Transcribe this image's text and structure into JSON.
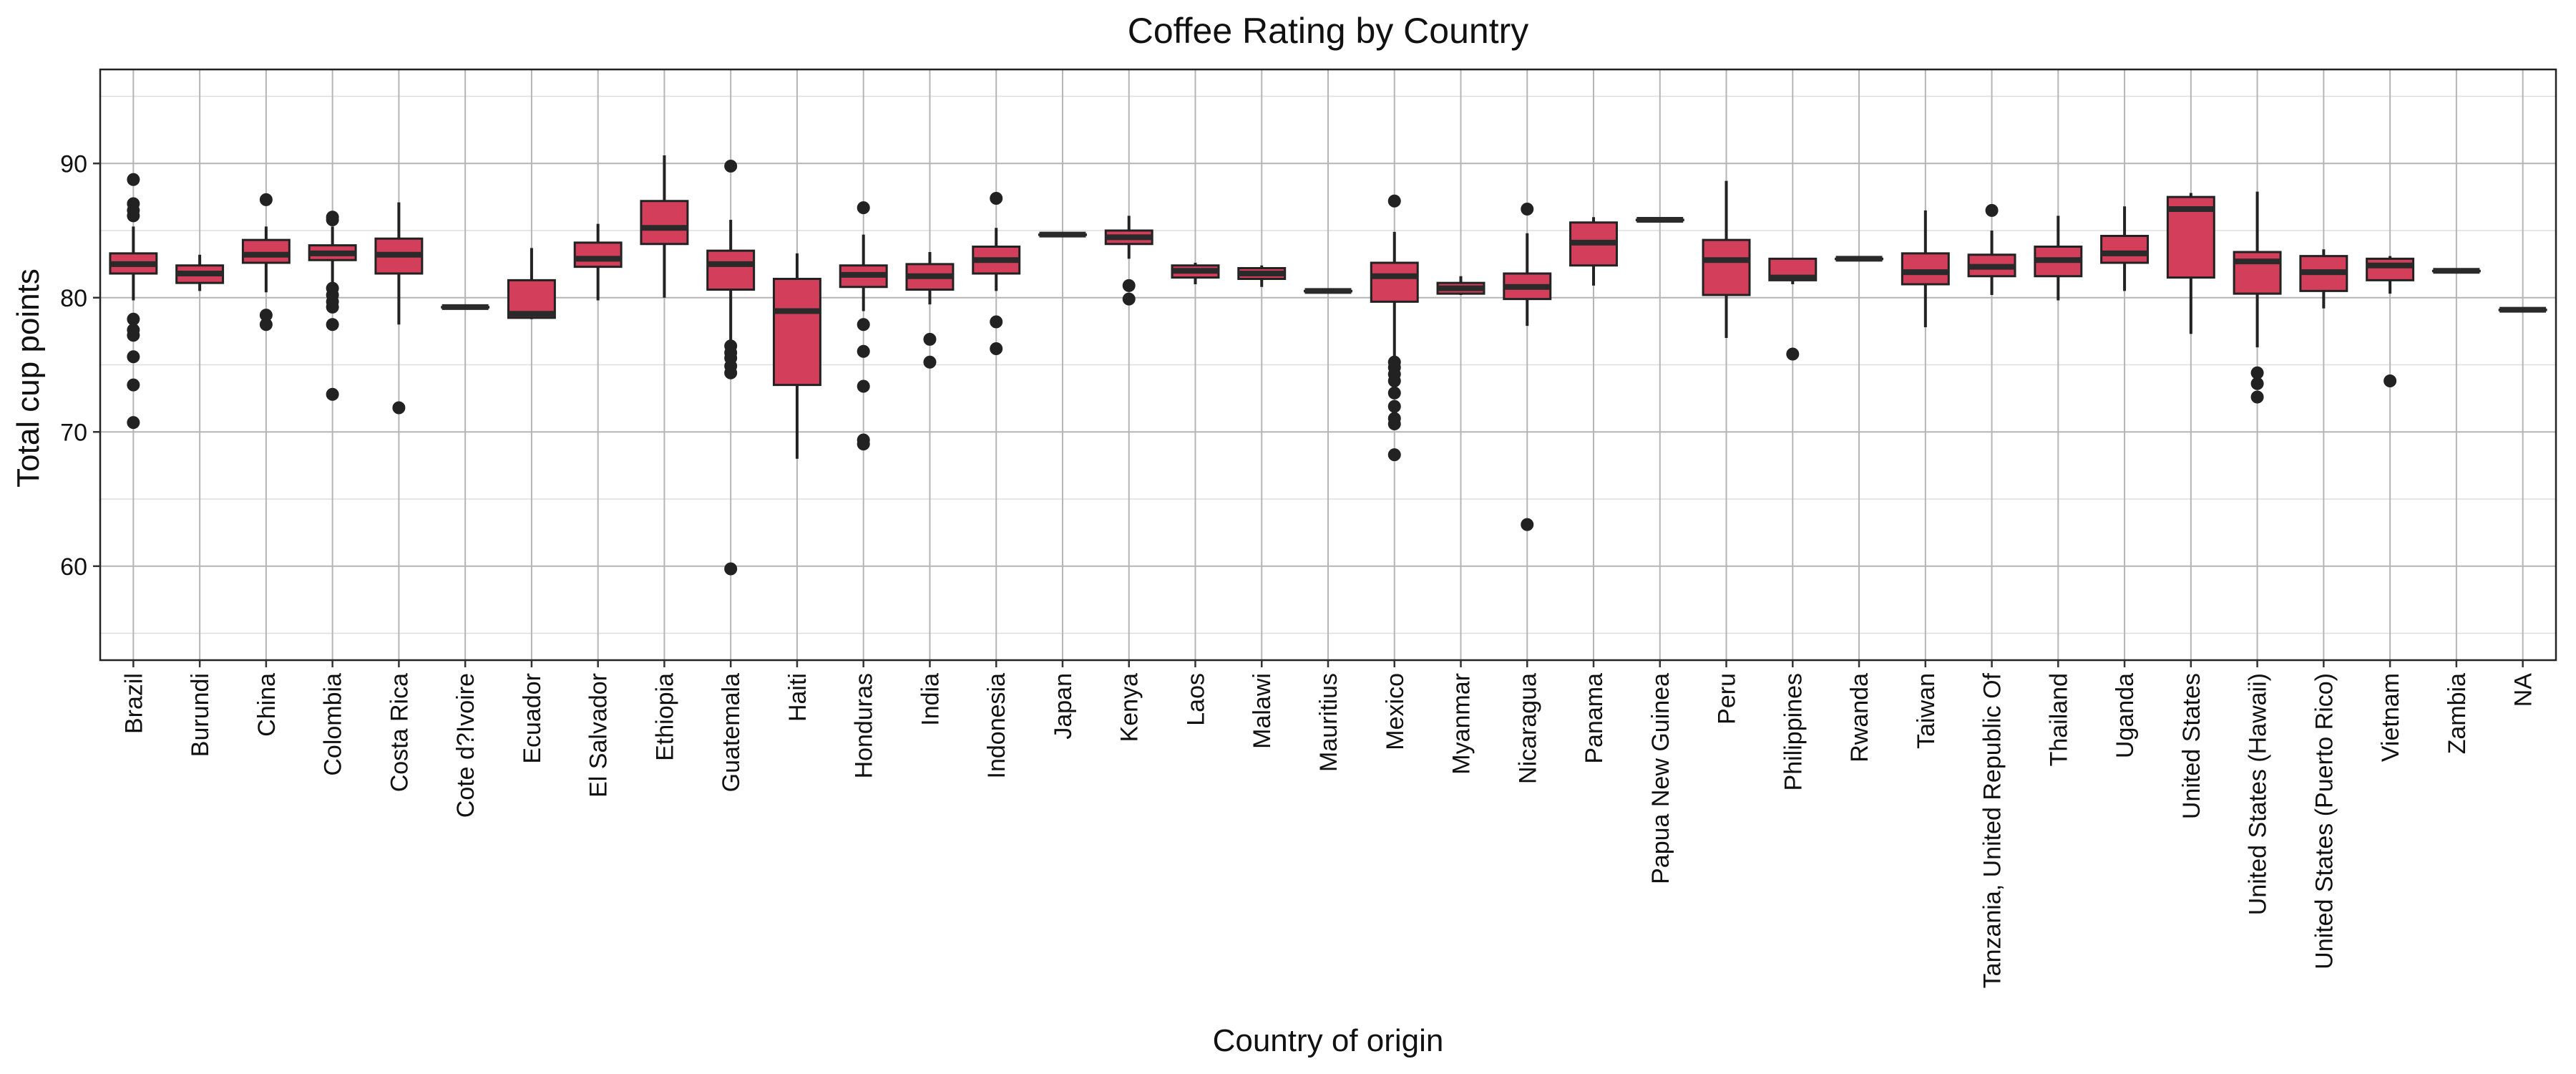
{
  "chart_data": {
    "type": "boxplot",
    "title": "Coffee Rating by Country",
    "xlabel": "Country of origin",
    "ylabel": "Total cup points",
    "ylim": [
      53,
      97
    ],
    "yticks": [
      60,
      70,
      80,
      90
    ],
    "grid": true,
    "box_color": "#d33e5a",
    "categories": [
      "Brazil",
      "Burundi",
      "China",
      "Colombia",
      "Costa Rica",
      "Cote d?Ivoire",
      "Ecuador",
      "El Salvador",
      "Ethiopia",
      "Guatemala",
      "Haiti",
      "Honduras",
      "India",
      "Indonesia",
      "Japan",
      "Kenya",
      "Laos",
      "Malawi",
      "Mauritius",
      "Mexico",
      "Myanmar",
      "Nicaragua",
      "Panama",
      "Papua New Guinea",
      "Peru",
      "Philippines",
      "Rwanda",
      "Taiwan",
      "Tanzania, United Republic Of",
      "Thailand",
      "Uganda",
      "United States",
      "United States (Hawaii)",
      "United States (Puerto Rico)",
      "Vietnam",
      "Zambia",
      "NA"
    ],
    "boxes": [
      {
        "min": 79.8,
        "q1": 81.8,
        "median": 82.5,
        "q3": 83.3,
        "max": 85.3,
        "outliers": [
          88.8,
          87.0,
          86.5,
          86.1,
          78.4,
          77.6,
          77.2,
          75.6,
          73.5,
          70.7
        ]
      },
      {
        "min": 80.5,
        "q1": 81.1,
        "median": 81.8,
        "q3": 82.4,
        "max": 83.2,
        "outliers": []
      },
      {
        "min": 80.4,
        "q1": 82.6,
        "median": 83.2,
        "q3": 84.3,
        "max": 85.3,
        "outliers": [
          87.3,
          78.7,
          78.0
        ]
      },
      {
        "min": 81.0,
        "q1": 82.8,
        "median": 83.3,
        "q3": 83.9,
        "max": 85.3,
        "outliers": [
          86.0,
          85.8,
          80.7,
          80.2,
          79.7,
          79.3,
          78.0,
          72.8
        ]
      },
      {
        "min": 78.0,
        "q1": 81.8,
        "median": 83.2,
        "q3": 84.4,
        "max": 87.1,
        "outliers": [
          71.8
        ]
      },
      {
        "min": 79.3,
        "q1": 79.3,
        "median": 79.3,
        "q3": 79.3,
        "max": 79.3,
        "outliers": []
      },
      {
        "min": 78.4,
        "q1": 78.5,
        "median": 78.8,
        "q3": 81.3,
        "max": 83.7,
        "outliers": []
      },
      {
        "min": 79.8,
        "q1": 82.3,
        "median": 82.9,
        "q3": 84.1,
        "max": 85.5,
        "outliers": []
      },
      {
        "min": 80.0,
        "q1": 84.0,
        "median": 85.2,
        "q3": 87.2,
        "max": 90.6,
        "outliers": []
      },
      {
        "min": 76.8,
        "q1": 80.6,
        "median": 82.5,
        "q3": 83.5,
        "max": 85.8,
        "outliers": [
          89.8,
          76.4,
          75.9,
          75.5,
          74.9,
          74.4,
          59.8
        ]
      },
      {
        "min": 68.0,
        "q1": 73.5,
        "median": 79.0,
        "q3": 81.4,
        "max": 83.3,
        "outliers": []
      },
      {
        "min": 79.0,
        "q1": 80.8,
        "median": 81.7,
        "q3": 82.4,
        "max": 84.7,
        "outliers": [
          86.7,
          78.0,
          76.0,
          73.4,
          69.4,
          69.1
        ]
      },
      {
        "min": 79.5,
        "q1": 80.6,
        "median": 81.6,
        "q3": 82.5,
        "max": 83.4,
        "outliers": [
          76.9,
          75.2
        ]
      },
      {
        "min": 80.5,
        "q1": 81.8,
        "median": 82.8,
        "q3": 83.8,
        "max": 85.2,
        "outliers": [
          87.4,
          78.2,
          76.2
        ]
      },
      {
        "min": 84.7,
        "q1": 84.7,
        "median": 84.7,
        "q3": 84.7,
        "max": 84.7,
        "outliers": []
      },
      {
        "min": 82.9,
        "q1": 84.0,
        "median": 84.5,
        "q3": 85.0,
        "max": 86.1,
        "outliers": [
          80.9,
          79.9
        ]
      },
      {
        "min": 81.0,
        "q1": 81.5,
        "median": 82.0,
        "q3": 82.4,
        "max": 82.6,
        "outliers": []
      },
      {
        "min": 80.8,
        "q1": 81.4,
        "median": 81.8,
        "q3": 82.2,
        "max": 82.4,
        "outliers": []
      },
      {
        "min": 80.5,
        "q1": 80.5,
        "median": 80.5,
        "q3": 80.5,
        "max": 80.5,
        "outliers": []
      },
      {
        "min": 75.6,
        "q1": 79.7,
        "median": 81.6,
        "q3": 82.6,
        "max": 84.9,
        "outliers": [
          87.2,
          75.2,
          74.8,
          74.3,
          73.8,
          72.9,
          71.9,
          71.0,
          70.6,
          68.3
        ]
      },
      {
        "min": 80.2,
        "q1": 80.3,
        "median": 80.7,
        "q3": 81.1,
        "max": 81.6,
        "outliers": []
      },
      {
        "min": 77.9,
        "q1": 79.9,
        "median": 80.8,
        "q3": 81.8,
        "max": 84.8,
        "outliers": [
          86.6,
          63.1
        ]
      },
      {
        "min": 80.9,
        "q1": 82.4,
        "median": 84.1,
        "q3": 85.6,
        "max": 86.0,
        "outliers": []
      },
      {
        "min": 85.8,
        "q1": 85.8,
        "median": 85.8,
        "q3": 85.8,
        "max": 85.8,
        "outliers": []
      },
      {
        "min": 77.0,
        "q1": 80.2,
        "median": 82.8,
        "q3": 84.3,
        "max": 88.7,
        "outliers": []
      },
      {
        "min": 81.0,
        "q1": 81.3,
        "median": 81.5,
        "q3": 82.9,
        "max": 82.9,
        "outliers": [
          75.8
        ]
      },
      {
        "min": 82.9,
        "q1": 82.9,
        "median": 82.9,
        "q3": 82.9,
        "max": 82.9,
        "outliers": []
      },
      {
        "min": 77.8,
        "q1": 81.0,
        "median": 81.9,
        "q3": 83.3,
        "max": 86.5,
        "outliers": []
      },
      {
        "min": 80.2,
        "q1": 81.6,
        "median": 82.3,
        "q3": 83.2,
        "max": 85.0,
        "outliers": [
          86.5
        ]
      },
      {
        "min": 79.8,
        "q1": 81.6,
        "median": 82.8,
        "q3": 83.8,
        "max": 86.1,
        "outliers": []
      },
      {
        "min": 80.5,
        "q1": 82.6,
        "median": 83.3,
        "q3": 84.6,
        "max": 86.8,
        "outliers": []
      },
      {
        "min": 77.3,
        "q1": 81.5,
        "median": 86.6,
        "q3": 87.5,
        "max": 87.8,
        "outliers": []
      },
      {
        "min": 76.3,
        "q1": 80.3,
        "median": 82.7,
        "q3": 83.4,
        "max": 87.9,
        "outliers": [
          74.4,
          73.6,
          72.6
        ]
      },
      {
        "min": 79.2,
        "q1": 80.5,
        "median": 81.9,
        "q3": 83.1,
        "max": 83.6,
        "outliers": []
      },
      {
        "min": 80.3,
        "q1": 81.3,
        "median": 82.4,
        "q3": 82.9,
        "max": 83.1,
        "outliers": [
          73.8
        ]
      },
      {
        "min": 82.0,
        "q1": 82.0,
        "median": 82.0,
        "q3": 82.0,
        "max": 82.0,
        "outliers": []
      },
      {
        "min": 79.1,
        "q1": 79.1,
        "median": 79.1,
        "q3": 79.1,
        "max": 79.1,
        "outliers": []
      }
    ]
  }
}
